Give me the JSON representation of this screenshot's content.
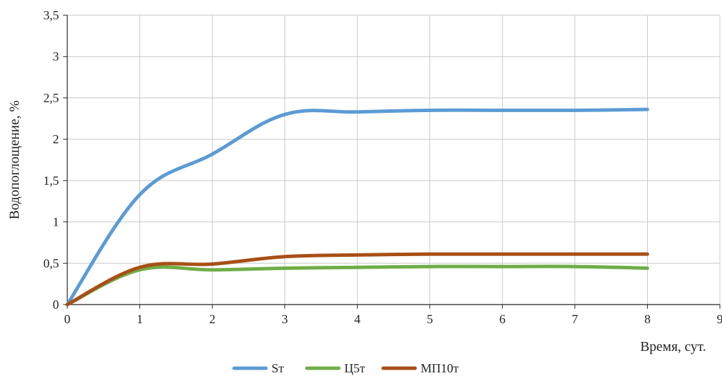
{
  "chart_data": {
    "type": "line",
    "title": "",
    "xlabel": "Время, сут.",
    "ylabel": "Водопоглощение, %",
    "xlim": [
      0,
      9
    ],
    "ylim": [
      0,
      3.5
    ],
    "x_ticks": [
      "0",
      "1",
      "2",
      "3",
      "4",
      "5",
      "6",
      "7",
      "8",
      "9"
    ],
    "y_ticks": [
      "0",
      "0,5",
      "1",
      "1,5",
      "2",
      "2,5",
      "3",
      "3,5"
    ],
    "grid": true,
    "legend_position": "bottom",
    "x": [
      0,
      1,
      2,
      3,
      4,
      5,
      6,
      7,
      8
    ],
    "series": [
      {
        "name": "Sт",
        "color": "#5b9bd5",
        "values": [
          0,
          1.33,
          1.82,
          2.3,
          2.33,
          2.35,
          2.35,
          2.35,
          2.36
        ]
      },
      {
        "name": "Ц5т",
        "color": "#70ad47",
        "values": [
          0,
          0.42,
          0.42,
          0.44,
          0.45,
          0.46,
          0.46,
          0.46,
          0.44
        ]
      },
      {
        "name": "МП10т",
        "color": "#a84f16",
        "values": [
          0,
          0.45,
          0.49,
          0.58,
          0.6,
          0.61,
          0.61,
          0.61,
          0.61
        ]
      }
    ]
  }
}
